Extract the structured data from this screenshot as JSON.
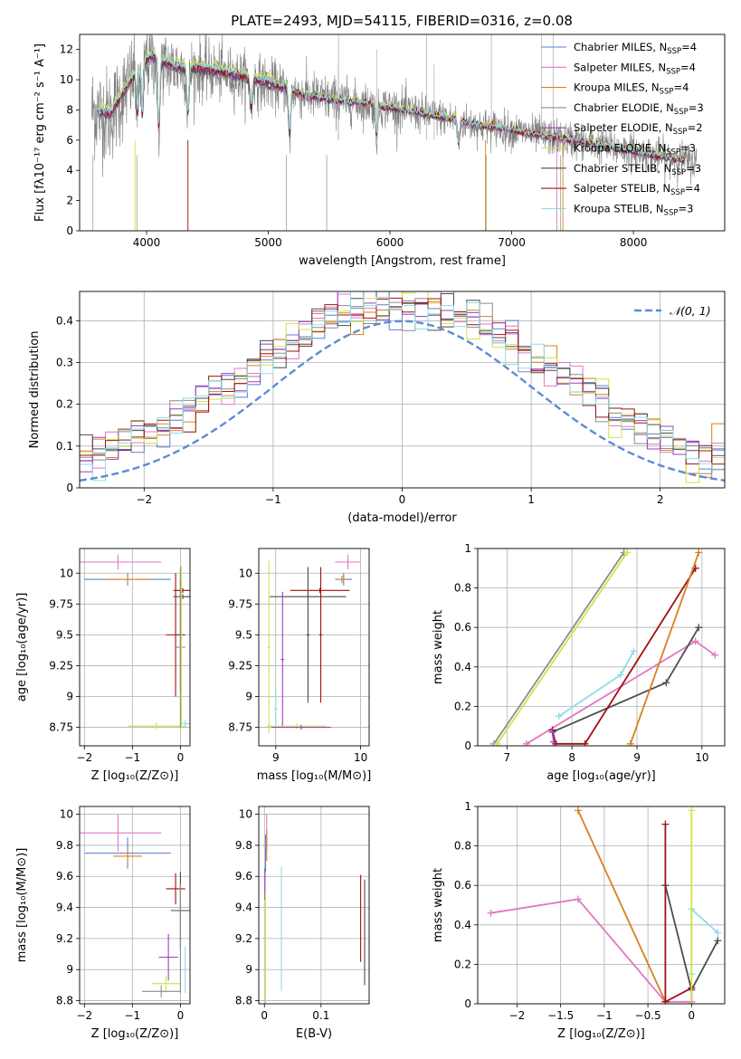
{
  "figure": {
    "title": "PLATE=2493, MJD=54115, FIBERID=0316, z=0.08"
  },
  "colors": {
    "chabrier_miles": "#5b7fd6",
    "salpeter_miles": "#e377c2",
    "kroupa_miles": "#d9801f",
    "chabrier_elodie": "#8c8c8c",
    "salpeter_elodie": "#9a3fbf",
    "kroupa_elodie": "#cfe34a",
    "chabrier_stelib": "#4d4d4d",
    "salpeter_stelib": "#a01010",
    "kroupa_stelib": "#8fdce6",
    "normal": "#5b8bd6",
    "data": "#7f7f7f"
  },
  "chart_data": [
    {
      "type": "line",
      "xlabel": "wavelength [Angstrom, rest frame]",
      "ylabel": "Flux [fλ10⁻¹⁷ erg cm⁻² s⁻¹ A⁻¹]",
      "xlim": [
        3450,
        8750
      ],
      "ylim": [
        0,
        13
      ],
      "xticks": [
        4000,
        5000,
        6000,
        7000,
        8000
      ],
      "yticks": [
        0,
        2,
        4,
        6,
        8,
        10,
        12
      ],
      "grid": false,
      "legend_position": "top-right",
      "legend": [
        {
          "key": "chabrier_miles",
          "label": "Chabrier MILES, N",
          "sub": "SSP",
          "tail": "=4"
        },
        {
          "key": "salpeter_miles",
          "label": "Salpeter MILES, N",
          "sub": "SSP",
          "tail": "=4"
        },
        {
          "key": "kroupa_miles",
          "label": "Kroupa MILES, N",
          "sub": "SSP",
          "tail": "=4"
        },
        {
          "key": "chabrier_elodie",
          "label": "Chabrier ELODIE, N",
          "sub": "SSP",
          "tail": "=3"
        },
        {
          "key": "salpeter_elodie",
          "label": "Salpeter ELODIE, N",
          "sub": "SSP",
          "tail": "=2"
        },
        {
          "key": "kroupa_elodie",
          "label": "Kroupa ELODIE, N",
          "sub": "SSP",
          "tail": "=3"
        },
        {
          "key": "chabrier_stelib",
          "label": "Chabrier STELIB, N",
          "sub": "SSP",
          "tail": "=3"
        },
        {
          "key": "salpeter_stelib",
          "label": "Salpeter STELIB, N",
          "sub": "SSP",
          "tail": "=4"
        },
        {
          "key": "kroupa_stelib",
          "label": "Kroupa STELIB, N",
          "sub": "SSP",
          "tail": "=3"
        }
      ],
      "spectrum_envelope": {
        "x": [
          3550,
          3700,
          3850,
          3950,
          4050,
          4150,
          4300,
          4500,
          4700,
          4900,
          5100,
          5300,
          5500,
          5700,
          5900,
          6100,
          6300,
          6500,
          6700,
          6900,
          7100,
          7300,
          7500,
          7700,
          7900,
          8100,
          8300,
          8500
        ],
        "model": [
          8.0,
          7.6,
          9.6,
          11.0,
          11.5,
          11.0,
          10.7,
          10.6,
          10.3,
          9.9,
          9.5,
          9.0,
          8.7,
          8.5,
          8.3,
          8.0,
          7.7,
          7.4,
          7.0,
          6.8,
          6.5,
          6.2,
          6.0,
          5.7,
          5.4,
          5.1,
          4.8,
          4.6
        ],
        "noise": [
          1.6,
          1.6,
          1.5,
          1.4,
          1.3,
          1.2,
          1.1,
          1.0,
          0.9,
          0.9,
          0.8,
          0.8,
          0.8,
          0.7,
          0.7,
          0.7,
          0.6,
          0.6,
          0.6,
          0.6,
          0.6,
          0.6,
          0.6,
          0.6,
          0.6,
          0.6,
          0.6,
          0.6
        ]
      }
    },
    {
      "type": "line",
      "xlabel": "(data-model)/error",
      "ylabel": "Normed distribution",
      "xlim": [
        -2.5,
        2.5
      ],
      "ylim": [
        0,
        0.47
      ],
      "xticks": [
        -2,
        -1,
        0,
        1,
        2
      ],
      "yticks": [
        0.0,
        0.1,
        0.2,
        0.3,
        0.4
      ],
      "grid": true,
      "legend_position": "top-right",
      "normal_label": "𝒩(0, 1)",
      "normal": {
        "mu": 0,
        "sigma": 1
      }
    },
    {
      "type": "scatter",
      "xlabel": "Z [log₁₀(Z/Z⊙)]",
      "ylabel": "age  [log₁₀(age/yr)]",
      "xlim": [
        -2.1,
        0.2
      ],
      "ylim": [
        8.6,
        10.2
      ],
      "xticks": [
        -2,
        -1,
        0
      ],
      "yticks": [
        8.75,
        9.0,
        9.25,
        9.5,
        9.75,
        10.0
      ],
      "grid": true,
      "errorbars": [
        {
          "key": "salpeter_miles",
          "x": -1.3,
          "xerr": 0.9,
          "y": 10.09,
          "yerr": 0.06
        },
        {
          "key": "chabrier_miles",
          "x": -1.1,
          "xerr": 0.9,
          "y": 9.95,
          "yerr": 0.05
        },
        {
          "key": "kroupa_miles",
          "x": -1.1,
          "xerr": 0.5,
          "y": 9.95,
          "yerr": 0.03
        },
        {
          "key": "salpeter_stelib",
          "x": -0.1,
          "xerr": 0.2,
          "y": 9.5,
          "yerr": 0.5
        },
        {
          "key": "chabrier_stelib",
          "x": 0.0,
          "xerr": 0.05,
          "y": 9.5,
          "yerr": 0.45
        },
        {
          "key": "salpeter_stelib",
          "x": 0.05,
          "xerr": 0.2,
          "y": 9.86,
          "yerr": 0.02
        },
        {
          "key": "chabrier_stelib",
          "x": 0.05,
          "xerr": 0.2,
          "y": 9.81,
          "yerr": 0.02
        },
        {
          "key": "kroupa_elodie",
          "x": -0.5,
          "xerr": 0.6,
          "y": 8.76,
          "yerr": 0.03
        },
        {
          "key": "kroupa_stelib",
          "x": 0.1,
          "xerr": 0.1,
          "y": 8.78,
          "yerr": 0.03
        },
        {
          "key": "chabrier_elodie",
          "x": 0.0,
          "xerr": 0.1,
          "y": 9.4,
          "yerr": 0.65
        },
        {
          "key": "kroupa_elodie",
          "x": 0.02,
          "xerr": 0.02,
          "y": 9.4,
          "yerr": 0.66
        }
      ]
    },
    {
      "type": "scatter",
      "xlabel": "mass [log₁₀(M/M⊙)]",
      "ylabel": "",
      "xlim": [
        8.8,
        10.1
      ],
      "ylim": [
        8.6,
        10.2
      ],
      "xticks": [
        9,
        10
      ],
      "yticks": [
        8.75,
        9.0,
        9.25,
        9.5,
        9.75,
        10.0
      ],
      "grid": true,
      "errorbars": [
        {
          "key": "salpeter_miles",
          "x": 9.85,
          "xerr": 0.15,
          "y": 10.09,
          "yerr": 0.06
        },
        {
          "key": "chabrier_miles",
          "x": 9.8,
          "xerr": 0.1,
          "y": 9.95,
          "yerr": 0.05
        },
        {
          "key": "kroupa_miles",
          "x": 9.78,
          "xerr": 0.05,
          "y": 9.95,
          "yerr": 0.03
        },
        {
          "key": "chabrier_stelib",
          "x": 9.38,
          "xerr": 0.45,
          "y": 9.81,
          "yerr": 0.02
        },
        {
          "key": "salpeter_stelib",
          "x": 9.52,
          "xerr": 0.35,
          "y": 9.86,
          "yerr": 0.02
        },
        {
          "key": "chabrier_stelib",
          "x": 9.38,
          "xerr": 0.02,
          "y": 9.5,
          "yerr": 0.55
        },
        {
          "key": "salpeter_stelib",
          "x": 9.53,
          "xerr": 0.02,
          "y": 9.5,
          "yerr": 0.55
        },
        {
          "key": "salpeter_elodie",
          "x": 9.08,
          "xerr": 0.02,
          "y": 9.3,
          "yerr": 0.55
        },
        {
          "key": "kroupa_elodie",
          "x": 8.92,
          "xerr": 0.02,
          "y": 9.4,
          "yerr": 0.7
        },
        {
          "key": "kroupa_elodie",
          "x": 9.25,
          "xerr": 0.35,
          "y": 8.76,
          "yerr": 0.02
        },
        {
          "key": "kroupa_stelib",
          "x": 9.0,
          "xerr": 0.02,
          "y": 8.9,
          "yerr": 0.15
        },
        {
          "key": "salpeter_elodie",
          "x": 9.3,
          "xerr": 0.35,
          "y": 8.75,
          "yerr": 0.02
        }
      ]
    },
    {
      "type": "line",
      "xlabel": "age  [log₁₀(age/yr)]",
      "ylabel": "mass weight",
      "xlim": [
        6.55,
        10.35
      ],
      "ylim": [
        0,
        1.0
      ],
      "xticks": [
        7,
        8,
        9,
        10
      ],
      "yticks": [
        0.0,
        0.2,
        0.4,
        0.6,
        0.8,
        1.0
      ],
      "grid": true,
      "series": [
        {
          "key": "chabrier_elodie",
          "x": [
            6.8,
            8.8
          ],
          "y": [
            0.01,
            0.98
          ]
        },
        {
          "key": "kroupa_elodie",
          "x": [
            6.85,
            8.85
          ],
          "y": [
            0.01,
            0.98
          ]
        },
        {
          "key": "salpeter_miles",
          "x": [
            7.3,
            9.9,
            10.2
          ],
          "y": [
            0.01,
            0.53,
            0.46
          ]
        },
        {
          "key": "kroupa_stelib",
          "x": [
            7.8,
            8.75,
            8.95
          ],
          "y": [
            0.15,
            0.36,
            0.48
          ]
        },
        {
          "key": "chabrier_stelib",
          "x": [
            7.7,
            9.45,
            9.95
          ],
          "y": [
            0.07,
            0.32,
            0.6
          ]
        },
        {
          "key": "salpeter_stelib",
          "x": [
            7.7,
            7.75,
            8.2,
            9.9
          ],
          "y": [
            0.08,
            0.01,
            0.01,
            0.9
          ]
        },
        {
          "key": "kroupa_miles",
          "x": [
            8.9,
            9.95
          ],
          "y": [
            0.01,
            0.98
          ]
        },
        {
          "key": "salpeter_elodie",
          "x": [
            7.7,
            7.72
          ],
          "y": [
            0.07,
            0.02
          ]
        }
      ]
    },
    {
      "type": "scatter",
      "xlabel": "Z [log₁₀(Z/Z⊙)]",
      "ylabel": "mass [log₁₀(M/M⊙)]",
      "xlim": [
        -2.1,
        0.2
      ],
      "ylim": [
        8.78,
        10.05
      ],
      "xticks": [
        -2,
        -1,
        0
      ],
      "yticks": [
        8.8,
        9.0,
        9.2,
        9.4,
        9.6,
        9.8,
        10.0
      ],
      "grid": true,
      "errorbars": [
        {
          "key": "salpeter_miles",
          "x": -1.3,
          "xerr": 0.9,
          "y": 9.88,
          "yerr": 0.12
        },
        {
          "key": "chabrier_miles",
          "x": -1.1,
          "xerr": 0.9,
          "y": 9.75,
          "yerr": 0.1
        },
        {
          "key": "kroupa_miles",
          "x": -1.1,
          "xerr": 0.3,
          "y": 9.73,
          "yerr": 0.04
        },
        {
          "key": "salpeter_stelib",
          "x": -0.1,
          "xerr": 0.2,
          "y": 9.52,
          "yerr": 0.1
        },
        {
          "key": "chabrier_stelib",
          "x": 0.0,
          "xerr": 0.2,
          "y": 9.38,
          "yerr": 0.25
        },
        {
          "key": "salpeter_elodie",
          "x": -0.25,
          "xerr": 0.2,
          "y": 9.08,
          "yerr": 0.15
        },
        {
          "key": "kroupa_elodie",
          "x": -0.3,
          "xerr": 0.3,
          "y": 8.91,
          "yerr": 0.05
        },
        {
          "key": "chabrier_elodie",
          "x": -0.4,
          "xerr": 0.4,
          "y": 8.86,
          "yerr": 0.04
        },
        {
          "key": "kroupa_stelib",
          "x": 0.1,
          "xerr": 0.05,
          "y": 9.0,
          "yerr": 0.15
        },
        {
          "key": "chabrier_elodie",
          "x": 0.0,
          "xerr": 0.02,
          "y": 9.2,
          "yerr": 0.35
        }
      ]
    },
    {
      "type": "scatter",
      "xlabel": "E(B-V)",
      "ylabel": "",
      "xlim": [
        -0.01,
        0.185
      ],
      "ylim": [
        8.78,
        10.05
      ],
      "xticks": [
        0.0,
        0.1
      ],
      "yticks": [
        8.8,
        9.0,
        9.2,
        9.4,
        9.6,
        9.8,
        10.0
      ],
      "grid": true,
      "errorbars": [
        {
          "key": "salpeter_miles",
          "x": 0.004,
          "xerr": 0,
          "y": 9.88,
          "yerr": 0.12
        },
        {
          "key": "kroupa_miles",
          "x": 0.004,
          "xerr": 0,
          "y": 9.8,
          "yerr": 0.1
        },
        {
          "key": "chabrier_miles",
          "x": 0.002,
          "xerr": 0,
          "y": 9.75,
          "yerr": 0.12
        },
        {
          "key": "salpeter_elodie",
          "x": 0.001,
          "xerr": 0,
          "y": 9.55,
          "yerr": 0.1
        },
        {
          "key": "kroupa_elodie",
          "x": 0.002,
          "xerr": 0,
          "y": 9.1,
          "yerr": 0.4
        },
        {
          "key": "kroupa_stelib",
          "x": 0.03,
          "xerr": 0,
          "y": 9.26,
          "yerr": 0.4
        },
        {
          "key": "salpeter_stelib",
          "x": 0.17,
          "xerr": 0,
          "y": 9.33,
          "yerr": 0.28
        },
        {
          "key": "chabrier_stelib",
          "x": 0.177,
          "xerr": 0,
          "y": 9.24,
          "yerr": 0.34
        }
      ]
    },
    {
      "type": "line",
      "xlabel": "Z [log₁₀(Z/Z⊙)]",
      "ylabel": "mass weight",
      "xlim": [
        -2.45,
        0.38
      ],
      "ylim": [
        0,
        1.0
      ],
      "xticks": [
        -2.0,
        -1.5,
        -1.0,
        -0.5,
        0.0
      ],
      "yticks": [
        0.0,
        0.2,
        0.4,
        0.6,
        0.8,
        1.0
      ],
      "grid": true,
      "series": [
        {
          "key": "salpeter_miles",
          "x": [
            -2.3,
            -1.3,
            -0.3,
            0.0
          ],
          "y": [
            0.46,
            0.53,
            0.01,
            0.01
          ]
        },
        {
          "key": "kroupa_miles",
          "x": [
            -1.3,
            -0.3
          ],
          "y": [
            0.98,
            0.01
          ]
        },
        {
          "key": "chabrier_stelib",
          "x": [
            -0.3,
            0.0,
            0.3
          ],
          "y": [
            0.6,
            0.07,
            0.32
          ]
        },
        {
          "key": "salpeter_stelib",
          "x": [
            -0.3,
            -0.3,
            0.0,
            0.0
          ],
          "y": [
            0.91,
            0.01,
            0.08,
            0.0
          ]
        },
        {
          "key": "kroupa_stelib",
          "x": [
            0.0,
            0.0,
            0.3
          ],
          "y": [
            0.15,
            0.48,
            0.36
          ]
        },
        {
          "key": "kroupa_elodie",
          "x": [
            0.0,
            0.0
          ],
          "y": [
            0.0,
            0.98
          ]
        }
      ]
    }
  ]
}
